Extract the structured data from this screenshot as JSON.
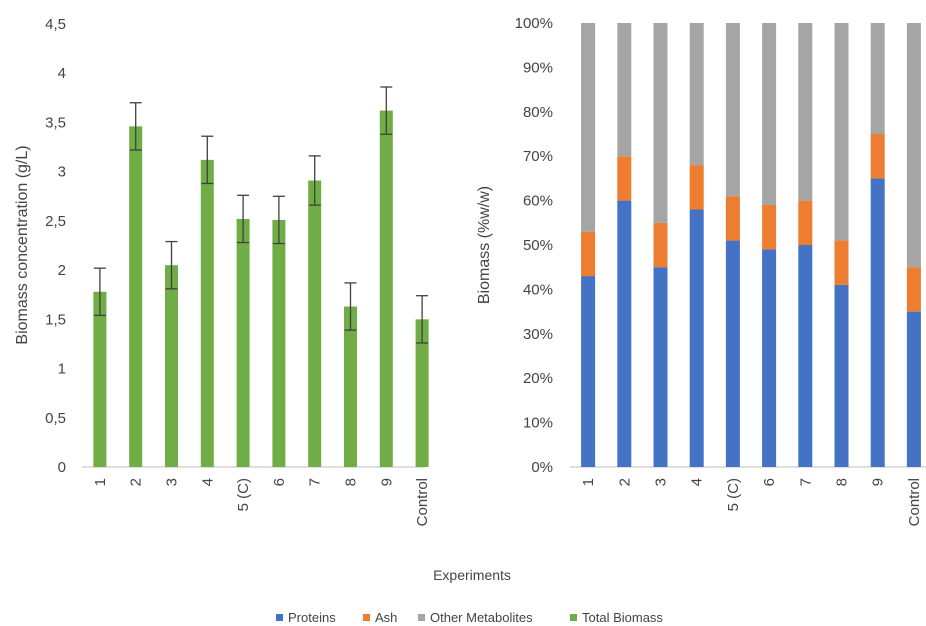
{
  "xlabel": "Experiments",
  "colors": {
    "proteins": "#4472C4",
    "ash": "#ED7D31",
    "other": "#A5A5A5",
    "total": "#70AD47",
    "error_bar": "#404040",
    "axis": "#bfbfbf",
    "text": "#444444"
  },
  "legend": [
    {
      "key": "proteins",
      "label": "Proteins"
    },
    {
      "key": "ash",
      "label": "Ash"
    },
    {
      "key": "other",
      "label": "Other Metabolites"
    },
    {
      "key": "total",
      "label": "Total Biomass"
    }
  ],
  "chart_data": [
    {
      "type": "bar",
      "ylabel": "Biomass concentration (g/L)",
      "ylim": [
        0,
        4.5
      ],
      "yticks": [
        "0",
        "0,5",
        "1",
        "1,5",
        "2",
        "2,5",
        "3",
        "3,5",
        "4",
        "4,5"
      ],
      "categories": [
        "1",
        "2",
        "3",
        "4",
        "5 (C)",
        "6",
        "7",
        "8",
        "9",
        "Control"
      ],
      "series": [
        {
          "name": "Total Biomass",
          "values": [
            1.78,
            3.46,
            2.05,
            3.12,
            2.52,
            2.51,
            2.91,
            1.63,
            3.62,
            1.5
          ],
          "errors": [
            0.24,
            0.24,
            0.24,
            0.24,
            0.24,
            0.24,
            0.25,
            0.24,
            0.24,
            0.24
          ]
        }
      ],
      "legend_position": "bottom",
      "grid": false
    },
    {
      "type": "bar",
      "stacked": true,
      "ylabel": "Biomass (%w/w)",
      "ylim": [
        0,
        100
      ],
      "yticks": [
        "0%",
        "10%",
        "20%",
        "30%",
        "40%",
        "50%",
        "60%",
        "70%",
        "80%",
        "90%",
        "100%"
      ],
      "categories": [
        "1",
        "2",
        "3",
        "4",
        "5 (C)",
        "6",
        "7",
        "8",
        "9",
        "Control"
      ],
      "series": [
        {
          "name": "Proteins",
          "values": [
            43,
            60,
            45,
            58,
            51,
            49,
            50,
            41,
            65,
            35
          ]
        },
        {
          "name": "Ash",
          "values": [
            10,
            10,
            10,
            10,
            10,
            10,
            10,
            10,
            10,
            10
          ]
        },
        {
          "name": "Other Metabolites",
          "values": [
            47,
            30,
            45,
            32,
            39,
            41,
            40,
            49,
            25,
            55
          ]
        }
      ],
      "legend_position": "bottom",
      "grid": false
    }
  ]
}
